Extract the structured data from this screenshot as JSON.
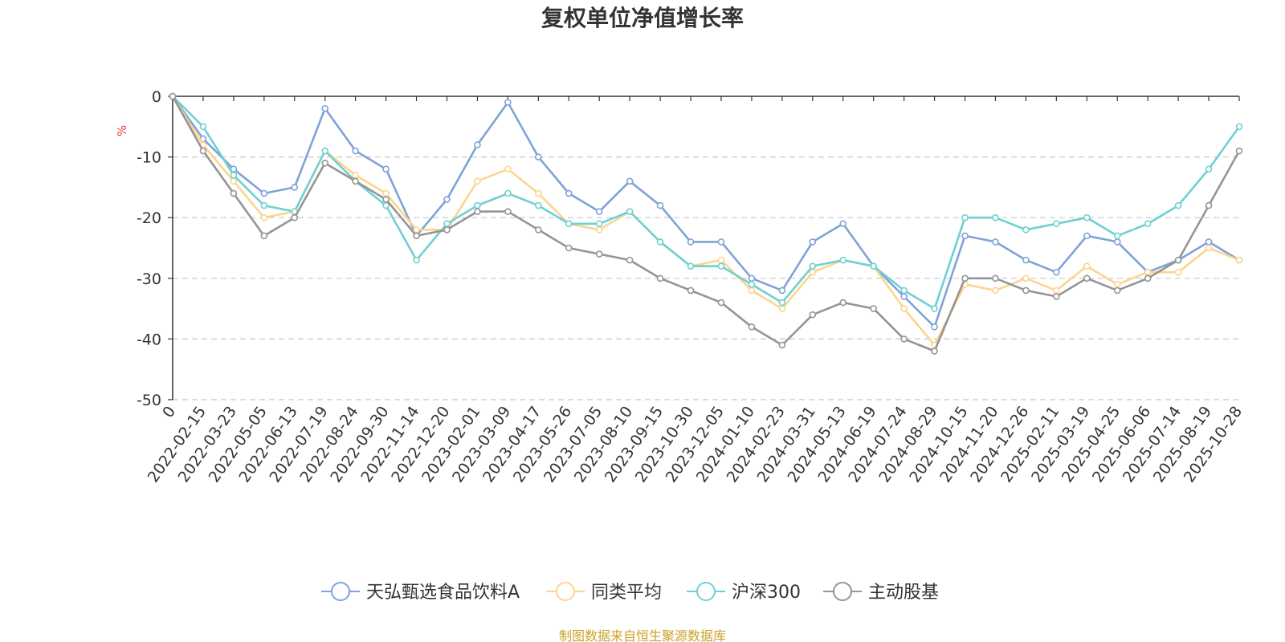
{
  "chart_data": {
    "type": "line",
    "title": "复权单位净值增长率",
    "y_unit_label": "%",
    "ylim": [
      -50,
      0
    ],
    "y_ticks": [
      0,
      -10,
      -20,
      -30,
      -40,
      -50
    ],
    "grid": "horizontal dashed",
    "legend_position": "bottom",
    "x_tick_labels": [
      "0",
      "2022-02-15",
      "2022-03-23",
      "2022-05-05",
      "2022-06-13",
      "2022-07-19",
      "2022-08-24",
      "2022-09-30",
      "2022-11-14",
      "2022-12-20",
      "2023-02-01",
      "2023-03-09",
      "2023-04-17",
      "2023-05-26",
      "2023-07-05",
      "2023-08-10",
      "2023-09-15",
      "2023-10-30",
      "2023-12-05",
      "2024-01-10",
      "2024-02-23",
      "2024-03-31",
      "2024-05-13",
      "2024-06-19",
      "2024-07-24",
      "2024-08-29",
      "2024-10-15",
      "2024-11-20",
      "2024-12-26",
      "2025-02-11",
      "2025-03-19",
      "2025-04-25",
      "2025-06-06",
      "2025-07-14",
      "2025-08-19",
      "2025-10-28"
    ],
    "x": [
      "0",
      "2022-02-15",
      "2022-03-23",
      "2022-05-05",
      "2022-06-13",
      "2022-07-19",
      "2022-08-24",
      "2022-09-30",
      "2022-11-14",
      "2022-12-20",
      "2023-02-01",
      "2023-03-09",
      "2023-04-17",
      "2023-05-26",
      "2023-07-05",
      "2023-08-10",
      "2023-09-15",
      "2023-10-30",
      "2023-12-05",
      "2024-01-10",
      "2024-02-23",
      "2024-03-31",
      "2024-05-13",
      "2024-06-19",
      "2024-07-24",
      "2024-08-29",
      "2024-10-15",
      "2024-11-20",
      "2024-12-26",
      "2025-02-11",
      "2025-03-19",
      "2025-04-25",
      "2025-06-06",
      "2025-07-14",
      "2025-08-19",
      "2025-10-28"
    ],
    "series": [
      {
        "name": "天弘甄选食品饮料A",
        "color": "#7fa2d8",
        "values": [
          0,
          -7,
          -12,
          -16,
          -15,
          -2,
          -9,
          -12,
          -23,
          -17,
          -8,
          -1,
          -10,
          -16,
          -19,
          -14,
          -18,
          -24,
          -24,
          -30,
          -32,
          -24,
          -21,
          -28,
          -33,
          -38,
          -23,
          -24,
          -27,
          -29,
          -23,
          -24,
          -29,
          -27,
          -24,
          -27
        ]
      },
      {
        "name": "同类平均",
        "color": "#fcd58f",
        "values": [
          0,
          -8,
          -14,
          -20,
          -19,
          -9,
          -13,
          -16,
          -22,
          -22,
          -14,
          -12,
          -16,
          -21,
          -22,
          -19,
          -24,
          -28,
          -27,
          -32,
          -35,
          -29,
          -27,
          -28,
          -35,
          -41,
          -31,
          -32,
          -30,
          -32,
          -28,
          -31,
          -29,
          -29,
          -25,
          -27
        ]
      },
      {
        "name": "沪深300",
        "color": "#6fd0d2",
        "values": [
          0,
          -5,
          -13,
          -18,
          -19,
          -9,
          -14,
          -18,
          -27,
          -21,
          -18,
          -16,
          -18,
          -21,
          -21,
          -19,
          -24,
          -28,
          -28,
          -31,
          -34,
          -28,
          -27,
          -28,
          -32,
          -35,
          -20,
          -20,
          -22,
          -21,
          -20,
          -23,
          -21,
          -18,
          -12,
          -5
        ]
      },
      {
        "name": "主动股基",
        "color": "#959595",
        "values": [
          0,
          -9,
          -16,
          -23,
          -20,
          -11,
          -14,
          -17,
          -23,
          -22,
          -19,
          -19,
          -22,
          -25,
          -26,
          -27,
          -30,
          -32,
          -34,
          -38,
          -41,
          -36,
          -34,
          -35,
          -40,
          -42,
          -30,
          -30,
          -32,
          -33,
          -30,
          -32,
          -30,
          -27,
          -18,
          -9
        ]
      }
    ]
  },
  "footer": {
    "source": "制图数据来自恒生聚源数据库"
  }
}
